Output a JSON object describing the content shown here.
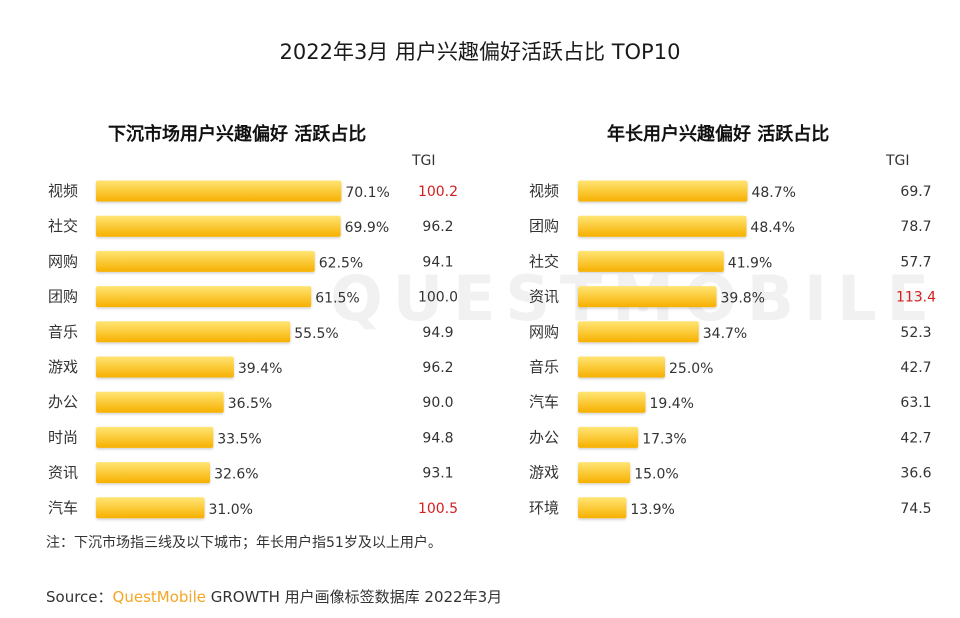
{
  "title": "2022年3月 用户兴趣偏好活跃占比 TOP10",
  "watermark": "QUESTMOBILE",
  "colors": {
    "bar_light": "#ffe066",
    "bar_dark": "#f9b200",
    "highlight": "#d21f1f",
    "text": "#333333"
  },
  "chart_data": [
    {
      "type": "bar",
      "orientation": "horizontal",
      "title": "下沉市场用户兴趣偏好 活跃占比",
      "tgi_label": "TGI",
      "categories": [
        "视频",
        "社交",
        "网购",
        "团购",
        "音乐",
        "游戏",
        "办公",
        "时尚",
        "资讯",
        "汽车"
      ],
      "values": [
        70.1,
        69.9,
        62.5,
        61.5,
        55.5,
        39.4,
        36.5,
        33.5,
        32.6,
        31.0
      ],
      "value_labels": [
        "70.1%",
        "69.9%",
        "62.5%",
        "61.5%",
        "55.5%",
        "39.4%",
        "36.5%",
        "33.5%",
        "32.6%",
        "31.0%"
      ],
      "tgi": [
        "100.2",
        "96.2",
        "94.1",
        "100.0",
        "94.9",
        "96.2",
        "90.0",
        "94.8",
        "93.1",
        "100.5"
      ],
      "tgi_highlight": [
        true,
        false,
        false,
        false,
        false,
        false,
        false,
        false,
        false,
        true
      ],
      "unit": "%"
    },
    {
      "type": "bar",
      "orientation": "horizontal",
      "title": "年长用户兴趣偏好 活跃占比",
      "tgi_label": "TGI",
      "categories": [
        "视频",
        "团购",
        "社交",
        "资讯",
        "网购",
        "音乐",
        "汽车",
        "办公",
        "游戏",
        "环境"
      ],
      "values": [
        48.7,
        48.4,
        41.9,
        39.8,
        34.7,
        25.0,
        19.4,
        17.3,
        15.0,
        13.9
      ],
      "value_labels": [
        "48.7%",
        "48.4%",
        "41.9%",
        "39.8%",
        "34.7%",
        "25.0%",
        "19.4%",
        "17.3%",
        "15.0%",
        "13.9%"
      ],
      "tgi": [
        "69.7",
        "78.7",
        "57.7",
        "113.4",
        "52.3",
        "42.7",
        "63.1",
        "42.7",
        "36.6",
        "74.5"
      ],
      "tgi_highlight": [
        false,
        false,
        false,
        true,
        false,
        false,
        false,
        false,
        false,
        false
      ],
      "unit": "%"
    }
  ],
  "note": "注：下沉市场指三线及以下城市；年长用户指51岁及以上用户。",
  "source": {
    "prefix": "Source：",
    "brand": "QuestMobile",
    "text": " GROWTH 用户画像标签数据库 2022年3月"
  }
}
